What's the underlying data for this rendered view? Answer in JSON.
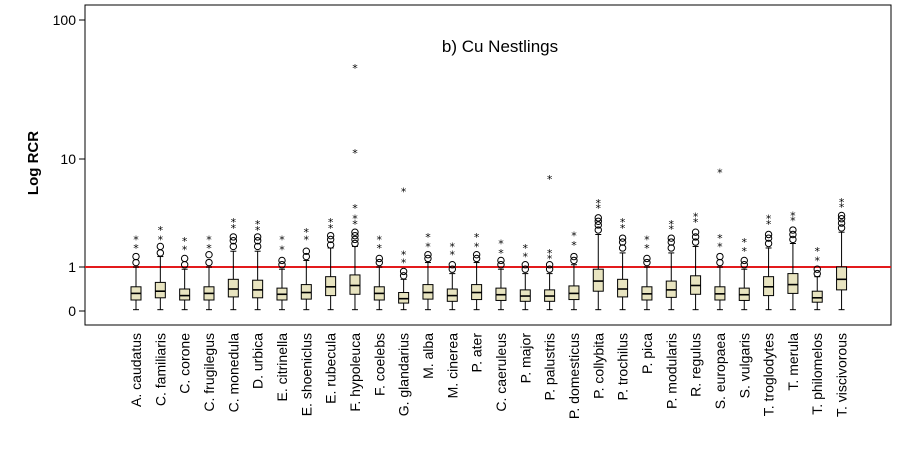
{
  "chart_data": {
    "type": "boxplot",
    "title": "b) Cu Nestlings",
    "ylabel": "Log RCR",
    "xlabel": "",
    "y_ticks": [
      "0",
      "1",
      "10",
      "100"
    ],
    "reference_line": {
      "value": 1,
      "color": "#e31a1c"
    },
    "categories": [
      "A. caudatus",
      "C. familiaris",
      "C. corone",
      "C. frugilegus",
      "C. monedula",
      "D. urbica",
      "E. citrinella",
      "E. shoeniclus",
      "E. rubecula",
      "F. hypoleuca",
      "F. coelebs",
      "G. glandarius",
      "M. alba",
      "M. cinerea",
      "P. ater",
      "C. caeruleus",
      "P. major",
      "P. palustris",
      "P. domesticus",
      "P. collybita",
      "P. trochilus",
      "P. pica",
      "P. modularis",
      "R. regulus",
      "S. europaea",
      "S. vulgaris",
      "T. troglodytes",
      "T. merula",
      "T. philomelos",
      "T. viscivorous"
    ],
    "boxes": [
      {
        "q1": 0.25,
        "median": 0.4,
        "q3": 0.55,
        "whisker_low": 0.03,
        "whisker_high": 1.0,
        "outliers_circle": [
          1.1,
          1.25
        ],
        "outliers_star": [
          1.5,
          1.8
        ]
      },
      {
        "q1": 0.3,
        "median": 0.45,
        "q3": 0.65,
        "whisker_low": 0.03,
        "whisker_high": 1.25,
        "outliers_circle": [
          1.35,
          1.55
        ],
        "outliers_star": [
          1.8,
          2.2
        ]
      },
      {
        "q1": 0.25,
        "median": 0.35,
        "q3": 0.5,
        "whisker_low": 0.03,
        "whisker_high": 0.95,
        "outliers_circle": [
          1.05,
          1.2
        ],
        "outliers_star": [
          1.45,
          1.75
        ]
      },
      {
        "q1": 0.25,
        "median": 0.4,
        "q3": 0.55,
        "whisker_low": 0.03,
        "whisker_high": 1.0,
        "outliers_circle": [
          1.1,
          1.3
        ],
        "outliers_star": [
          1.5,
          1.8
        ]
      },
      {
        "q1": 0.32,
        "median": 0.5,
        "q3": 0.72,
        "whisker_low": 0.03,
        "whisker_high": 1.4,
        "outliers_circle": [
          1.55,
          1.75,
          1.9
        ],
        "outliers_star": [
          2.3,
          2.6
        ]
      },
      {
        "q1": 0.3,
        "median": 0.48,
        "q3": 0.7,
        "whisker_low": 0.03,
        "whisker_high": 1.4,
        "outliers_circle": [
          1.55,
          1.75,
          1.9
        ],
        "outliers_star": [
          2.2,
          2.5
        ]
      },
      {
        "q1": 0.25,
        "median": 0.38,
        "q3": 0.52,
        "whisker_low": 0.03,
        "whisker_high": 0.95,
        "outliers_circle": [
          1.05,
          1.15
        ],
        "outliers_star": [
          1.45,
          1.8
        ]
      },
      {
        "q1": 0.27,
        "median": 0.42,
        "q3": 0.6,
        "whisker_low": 0.03,
        "whisker_high": 1.15,
        "outliers_circle": [
          1.25,
          1.4
        ],
        "outliers_star": [
          1.8,
          2.1
        ]
      },
      {
        "q1": 0.35,
        "median": 0.55,
        "q3": 0.78,
        "whisker_low": 0.03,
        "whisker_high": 1.5,
        "outliers_circle": [
          1.6,
          1.8,
          1.95
        ],
        "outliers_star": [
          2.3,
          2.6
        ]
      },
      {
        "q1": 0.38,
        "median": 0.58,
        "q3": 0.82,
        "whisker_low": 0.03,
        "whisker_high": 1.55,
        "outliers_circle": [
          1.65,
          1.8,
          1.95,
          2.1
        ],
        "outliers_star": [
          2.5,
          2.8,
          3.5,
          11,
          45
        ]
      },
      {
        "q1": 0.25,
        "median": 0.4,
        "q3": 0.55,
        "whisker_low": 0.03,
        "whisker_high": 1.0,
        "outliers_circle": [
          1.1,
          1.2
        ],
        "outliers_star": [
          1.5,
          1.8
        ]
      },
      {
        "q1": 0.18,
        "median": 0.28,
        "q3": 0.42,
        "whisker_low": 0.03,
        "whisker_high": 0.72,
        "outliers_circle": [
          0.8,
          0.9
        ],
        "outliers_star": [
          1.1,
          1.3,
          5.0
        ]
      },
      {
        "q1": 0.27,
        "median": 0.42,
        "q3": 0.6,
        "whisker_low": 0.03,
        "whisker_high": 1.1,
        "outliers_circle": [
          1.2,
          1.3
        ],
        "outliers_star": [
          1.55,
          1.9
        ]
      },
      {
        "q1": 0.22,
        "median": 0.35,
        "q3": 0.5,
        "whisker_low": 0.03,
        "whisker_high": 0.85,
        "outliers_circle": [
          0.95,
          1.05
        ],
        "outliers_star": [
          1.3,
          1.55
        ]
      },
      {
        "q1": 0.26,
        "median": 0.42,
        "q3": 0.6,
        "whisker_low": 0.03,
        "whisker_high": 1.1,
        "outliers_circle": [
          1.2,
          1.3
        ],
        "outliers_star": [
          1.55,
          1.9
        ]
      },
      {
        "q1": 0.24,
        "median": 0.37,
        "q3": 0.52,
        "whisker_low": 0.03,
        "whisker_high": 0.95,
        "outliers_circle": [
          1.05,
          1.15
        ],
        "outliers_star": [
          1.35,
          1.65
        ]
      },
      {
        "q1": 0.22,
        "median": 0.34,
        "q3": 0.48,
        "whisker_low": 0.03,
        "whisker_high": 0.85,
        "outliers_circle": [
          0.95,
          1.05
        ],
        "outliers_star": [
          1.25,
          1.5
        ]
      },
      {
        "q1": 0.22,
        "median": 0.34,
        "q3": 0.48,
        "whisker_low": 0.03,
        "whisker_high": 0.85,
        "outliers_circle": [
          0.95,
          1.05
        ],
        "outliers_star": [
          1.2,
          1.35,
          6.5
        ]
      },
      {
        "q1": 0.26,
        "median": 0.4,
        "q3": 0.57,
        "whisker_low": 0.03,
        "whisker_high": 1.05,
        "outliers_circle": [
          1.15,
          1.25
        ],
        "outliers_star": [
          1.6,
          1.95
        ]
      },
      {
        "q1": 0.45,
        "median": 0.68,
        "q3": 0.95,
        "whisker_low": 0.03,
        "whisker_high": 2.0,
        "outliers_circle": [
          2.2,
          2.45,
          2.65,
          2.85
        ],
        "outliers_star": [
          3.5,
          3.9
        ]
      },
      {
        "q1": 0.32,
        "median": 0.5,
        "q3": 0.72,
        "whisker_low": 0.03,
        "whisker_high": 1.35,
        "outliers_circle": [
          1.5,
          1.7,
          1.85
        ],
        "outliers_star": [
          2.3,
          2.6
        ]
      },
      {
        "q1": 0.25,
        "median": 0.39,
        "q3": 0.55,
        "whisker_low": 0.03,
        "whisker_high": 1.0,
        "outliers_circle": [
          1.1,
          1.2
        ],
        "outliers_star": [
          1.5,
          1.8
        ]
      },
      {
        "q1": 0.31,
        "median": 0.48,
        "q3": 0.68,
        "whisker_low": 0.03,
        "whisker_high": 1.35,
        "outliers_circle": [
          1.5,
          1.7,
          1.85
        ],
        "outliers_star": [
          2.25,
          2.5
        ]
      },
      {
        "q1": 0.38,
        "median": 0.58,
        "q3": 0.8,
        "whisker_low": 0.03,
        "whisker_high": 1.55,
        "outliers_circle": [
          1.7,
          1.9,
          2.1
        ],
        "outliers_star": [
          2.6,
          2.95
        ]
      },
      {
        "q1": 0.25,
        "median": 0.39,
        "q3": 0.55,
        "whisker_low": 0.03,
        "whisker_high": 1.0,
        "outliers_circle": [
          1.1,
          1.25
        ],
        "outliers_star": [
          1.55,
          1.85,
          7.5
        ]
      },
      {
        "q1": 0.24,
        "median": 0.37,
        "q3": 0.52,
        "whisker_low": 0.03,
        "whisker_high": 0.95,
        "outliers_circle": [
          1.05,
          1.15
        ],
        "outliers_star": [
          1.4,
          1.7
        ]
      },
      {
        "q1": 0.35,
        "median": 0.55,
        "q3": 0.78,
        "whisker_low": 0.03,
        "whisker_high": 1.5,
        "outliers_circle": [
          1.65,
          1.85,
          2.0
        ],
        "outliers_star": [
          2.5,
          2.8
        ]
      },
      {
        "q1": 0.4,
        "median": 0.6,
        "q3": 0.85,
        "whisker_low": 0.03,
        "whisker_high": 1.65,
        "outliers_circle": [
          1.8,
          2.0,
          2.2
        ],
        "outliers_star": [
          2.7,
          3.0
        ]
      },
      {
        "q1": 0.2,
        "median": 0.3,
        "q3": 0.45,
        "whisker_low": 0.03,
        "whisker_high": 0.78,
        "outliers_circle": [
          0.85,
          0.95
        ],
        "outliers_star": [
          1.15,
          1.4
        ]
      },
      {
        "q1": 0.48,
        "median": 0.72,
        "q3": 1.0,
        "whisker_low": 0.03,
        "whisker_high": 2.1,
        "outliers_circle": [
          2.3,
          2.55,
          2.8,
          3.0
        ],
        "outliers_star": [
          3.6,
          4.0
        ]
      }
    ],
    "colors": {
      "box_fill": "#e8e4c0",
      "line": "#000000",
      "reference": "#e31a1c"
    },
    "grid": false
  }
}
